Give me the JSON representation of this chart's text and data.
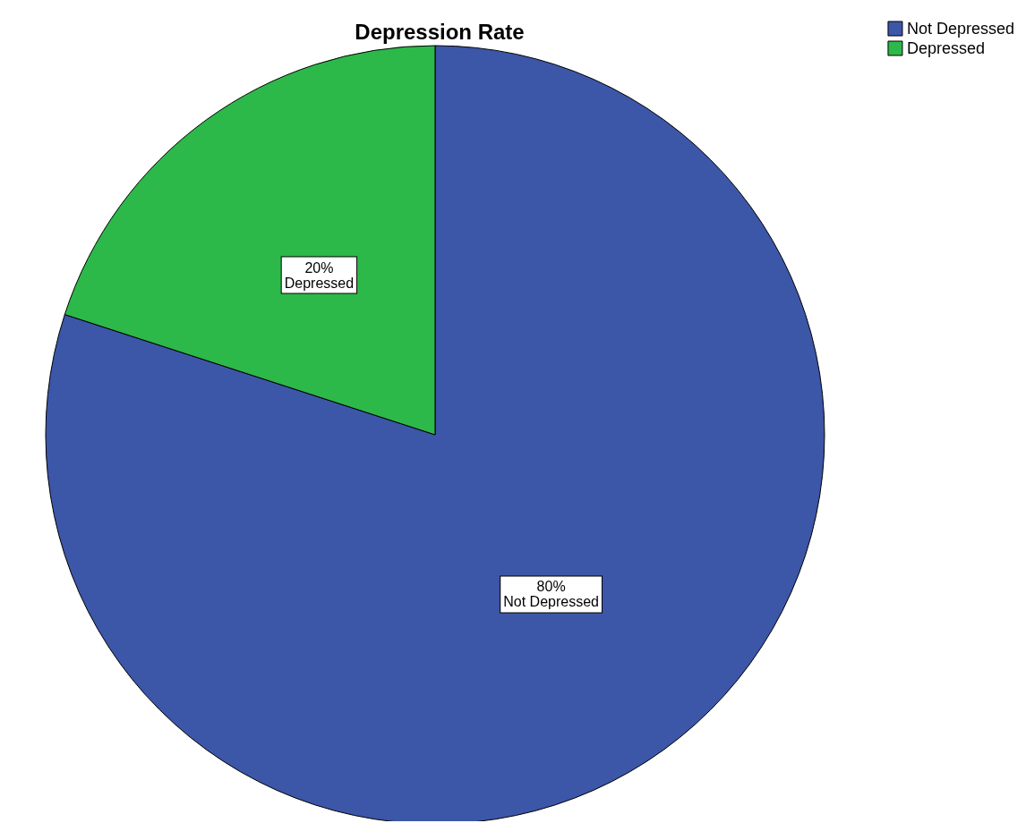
{
  "chart_data": {
    "type": "pie",
    "title": "Depression Rate",
    "categories": [
      "Not Depressed",
      "Depressed"
    ],
    "values": [
      80,
      20
    ],
    "value_labels": [
      "80%",
      "20%"
    ],
    "colors": [
      "#3c56a8",
      "#2db84a"
    ],
    "legend": "top right"
  }
}
